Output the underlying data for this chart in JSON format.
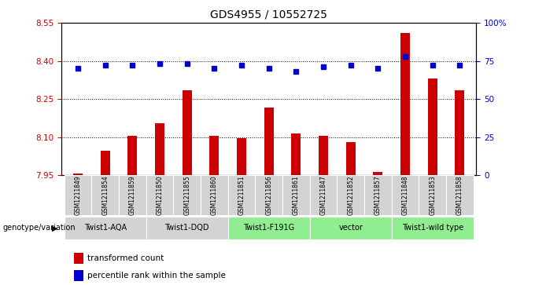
{
  "title": "GDS4955 / 10552725",
  "samples": [
    "GSM1211849",
    "GSM1211854",
    "GSM1211859",
    "GSM1211850",
    "GSM1211855",
    "GSM1211860",
    "GSM1211851",
    "GSM1211856",
    "GSM1211861",
    "GSM1211847",
    "GSM1211852",
    "GSM1211857",
    "GSM1211848",
    "GSM1211853",
    "GSM1211858"
  ],
  "red_values": [
    7.957,
    8.045,
    8.105,
    8.155,
    8.285,
    8.105,
    8.095,
    8.215,
    8.115,
    8.105,
    8.08,
    7.962,
    8.51,
    8.33,
    8.285
  ],
  "blue_values": [
    70,
    72,
    72,
    73,
    73,
    70,
    72,
    70,
    68,
    71,
    72,
    70,
    78,
    72,
    72
  ],
  "ylim_left": [
    7.95,
    8.55
  ],
  "ylim_right": [
    0,
    100
  ],
  "yticks_left": [
    7.95,
    8.1,
    8.25,
    8.4,
    8.55
  ],
  "yticks_right": [
    0,
    25,
    50,
    75,
    100
  ],
  "ytick_right_labels": [
    "0",
    "25",
    "50",
    "75",
    "100%"
  ],
  "hlines": [
    8.1,
    8.25,
    8.4
  ],
  "groups": [
    {
      "label": "Twist1-AQA",
      "start": 0,
      "end": 2,
      "color": "#d3d3d3"
    },
    {
      "label": "Twist1-DQD",
      "start": 3,
      "end": 5,
      "color": "#d3d3d3"
    },
    {
      "label": "Twist1-F191G",
      "start": 6,
      "end": 8,
      "color": "#90EE90"
    },
    {
      "label": "vector",
      "start": 9,
      "end": 11,
      "color": "#90EE90"
    },
    {
      "label": "Twist1-wild type",
      "start": 12,
      "end": 14,
      "color": "#90EE90"
    }
  ],
  "bar_color": "#cc0000",
  "dot_color": "#0000cc",
  "tick_color_left": "#cc0000",
  "tick_color_right": "#0000cc",
  "xlabel_genotype": "genotype/variation",
  "legend_red": "transformed count",
  "legend_blue": "percentile rank within the sample",
  "bar_width": 0.35,
  "dot_size": 5
}
